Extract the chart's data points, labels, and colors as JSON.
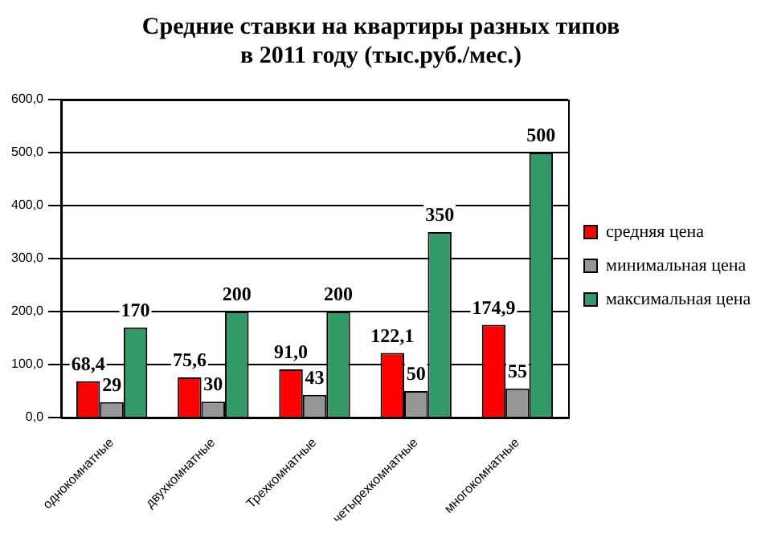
{
  "chart_data": {
    "type": "bar",
    "title": "Средние ставки на квартиры разных типов\nв 2011 году (тыс.руб./мес.)",
    "categories": [
      "однокомнатные",
      "двухкомнатные",
      "Трехкомнатные",
      "четырехкомнатные",
      "многокомнатные"
    ],
    "series": [
      {
        "name": "средняя цена",
        "color": "#ff0000",
        "values": [
          68.4,
          75.6,
          91.0,
          122.1,
          174.9
        ],
        "value_labels": [
          "68,4",
          "75,6",
          "91,0",
          "122,1",
          "174,9"
        ]
      },
      {
        "name": "минимальная цена",
        "color": "#969696",
        "values": [
          29,
          30,
          43,
          50,
          55
        ],
        "value_labels": [
          "29",
          "30",
          "43",
          "50",
          "55"
        ]
      },
      {
        "name": "максимальная цена",
        "color": "#339966",
        "values": [
          170,
          200,
          200,
          350,
          500
        ],
        "value_labels": [
          "170",
          "200",
          "200",
          "350",
          "500"
        ]
      }
    ],
    "ylim": [
      0,
      600
    ],
    "yticks": [
      {
        "value": 0,
        "label": "0,0"
      },
      {
        "value": 100,
        "label": "100,0"
      },
      {
        "value": 200,
        "label": "200,0"
      },
      {
        "value": 300,
        "label": "300,0"
      },
      {
        "value": 400,
        "label": "400,0"
      },
      {
        "value": 500,
        "label": "500,0"
      },
      {
        "value": 600,
        "label": "600,0"
      }
    ],
    "grid": "y",
    "legend": "right"
  }
}
